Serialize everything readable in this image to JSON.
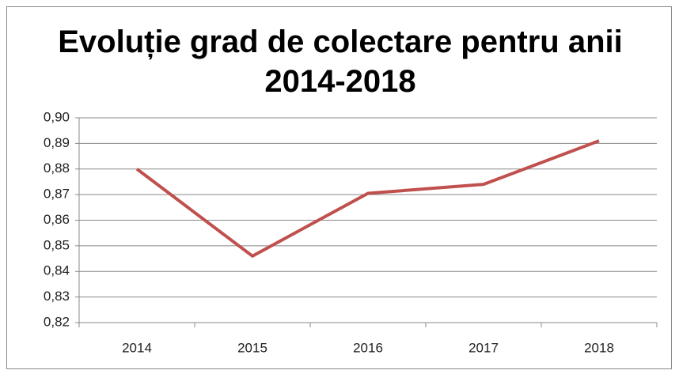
{
  "chart_data": {
    "type": "line",
    "title": "Evoluție grad de colectare pentru anii 2014-2018",
    "categories": [
      "2014",
      "2015",
      "2016",
      "2017",
      "2018"
    ],
    "series": [
      {
        "name": null,
        "color": "#c0504d",
        "values": [
          0.88,
          0.846,
          0.8705,
          0.874,
          0.891
        ]
      }
    ],
    "ylim": [
      0.82,
      0.9
    ],
    "yticks": [
      {
        "value": 0.82,
        "label": "0,82"
      },
      {
        "value": 0.83,
        "label": "0,83"
      },
      {
        "value": 0.84,
        "label": "0,84"
      },
      {
        "value": 0.85,
        "label": "0,85"
      },
      {
        "value": 0.86,
        "label": "0,86"
      },
      {
        "value": 0.87,
        "label": "0,87"
      },
      {
        "value": 0.88,
        "label": "0,88"
      },
      {
        "value": 0.89,
        "label": "0,89"
      },
      {
        "value": 0.9,
        "label": "0,90"
      }
    ],
    "grid": true
  }
}
